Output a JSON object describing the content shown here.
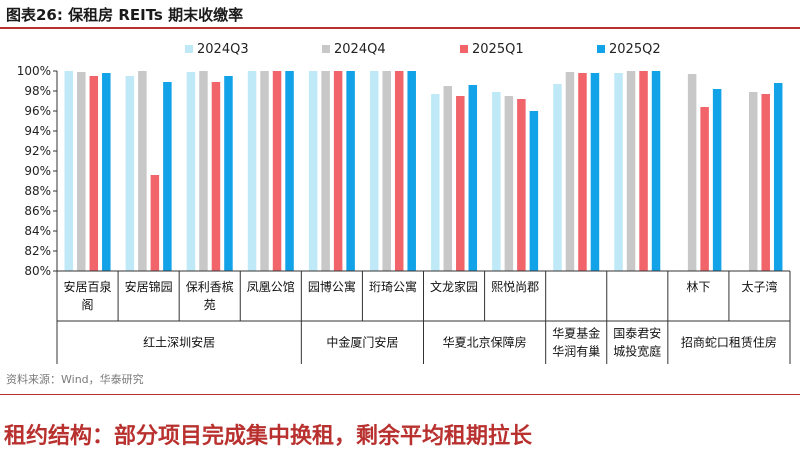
{
  "figure_title": "图表26:  保租房 REITs 期末收缴率",
  "source_note": "资料来源：Wind，华泰研究",
  "section_heading": "租约结构：部分项目完成集中换租，剩余平均租期拉长",
  "colors": {
    "2024Q3": "#bfe9f7",
    "2024Q4": "#c8c8c8",
    "2025Q1": "#f0646a",
    "2025Q2": "#12a2e8",
    "accent": "#b8312f"
  },
  "chart_data": {
    "type": "bar",
    "title": "保租房 REITs 期末收缴率",
    "xlabel": "",
    "ylabel": "",
    "ylim": [
      0.8,
      1.0
    ],
    "yticks": [
      "80%",
      "82%",
      "84%",
      "86%",
      "88%",
      "90%",
      "92%",
      "94%",
      "96%",
      "98%",
      "100%"
    ],
    "legend_position": "top",
    "grid": false,
    "categories": [
      "安居百泉阁",
      "安居锦园",
      "保利香槟苑",
      "凤凰公馆",
      "园博公寓",
      "珩琦公寓",
      "文龙家园",
      "熙悦尚郡",
      "",
      "",
      "林下",
      "太子湾"
    ],
    "category_labels": [
      [
        "安居百泉",
        "阁"
      ],
      [
        "安居锦园"
      ],
      [
        "保利香槟",
        "苑"
      ],
      [
        "凤凰公馆"
      ],
      [
        "园博公寓"
      ],
      [
        "珩琦公寓"
      ],
      [
        "文龙家园"
      ],
      [
        "熙悦尚郡"
      ],
      [],
      [],
      [
        "林下"
      ],
      [
        "太子湾"
      ]
    ],
    "groups": [
      {
        "name": "红土深圳安居",
        "lines": [
          "红土深圳安居"
        ],
        "span": [
          0,
          3
        ]
      },
      {
        "name": "中金厦门安居",
        "lines": [
          "中金厦门安居"
        ],
        "span": [
          4,
          5
        ]
      },
      {
        "name": "华夏北京保障房",
        "lines": [
          "华夏北京保障房"
        ],
        "span": [
          6,
          7
        ]
      },
      {
        "name": "华夏基金华润有巢",
        "lines": [
          "华夏基金",
          "华润有巢"
        ],
        "span": [
          8,
          8
        ]
      },
      {
        "name": "国泰君安城投宽庭",
        "lines": [
          "国泰君安",
          "城投宽庭"
        ],
        "span": [
          9,
          9
        ]
      },
      {
        "name": "招商蛇口租赁住房",
        "lines": [
          "招商蛇口租赁住房"
        ],
        "span": [
          10,
          11
        ]
      }
    ],
    "series": [
      {
        "name": "2024Q3",
        "values": [
          1.0,
          0.995,
          0.999,
          1.0,
          1.0,
          1.0,
          0.977,
          0.979,
          0.987,
          0.998,
          null,
          null
        ]
      },
      {
        "name": "2024Q4",
        "values": [
          0.999,
          1.0,
          1.0,
          1.0,
          1.0,
          1.0,
          0.985,
          0.975,
          0.999,
          1.0,
          0.997,
          0.979
        ]
      },
      {
        "name": "2025Q1",
        "values": [
          0.995,
          0.896,
          0.989,
          1.0,
          1.0,
          1.0,
          0.975,
          0.972,
          0.998,
          1.0,
          0.964,
          0.977
        ]
      },
      {
        "name": "2025Q2",
        "values": [
          0.998,
          0.989,
          0.995,
          1.0,
          1.0,
          1.0,
          0.986,
          0.96,
          0.998,
          1.0,
          0.982,
          0.988
        ]
      }
    ]
  }
}
